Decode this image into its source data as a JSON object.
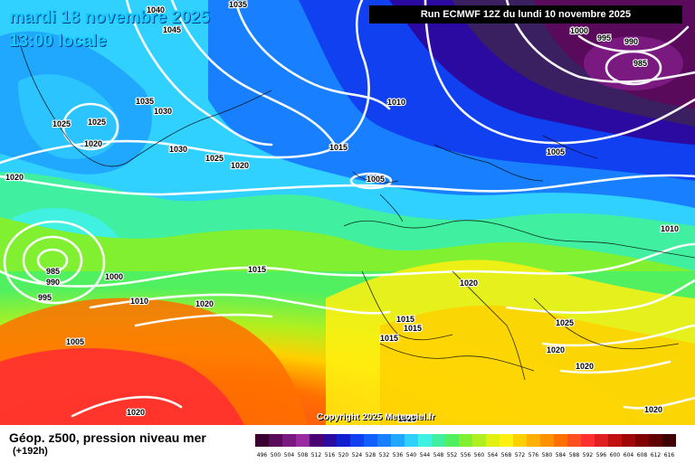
{
  "header": {
    "date": "mardi 18 novembre 2025",
    "time": "13:00 locale",
    "run": "Run ECMWF 12Z du lundi 10 novembre 2025"
  },
  "copyright": "Copyright 2025 Meteociel.fr",
  "footer": {
    "title": "Géop. z500, pression niveau mer",
    "subtitle": "(+192h)"
  },
  "legend": {
    "labels": [
      "496",
      "500",
      "504",
      "508",
      "512",
      "516",
      "520",
      "524",
      "528",
      "532",
      "536",
      "540",
      "544",
      "548",
      "552",
      "556",
      "560",
      "564",
      "568",
      "572",
      "576",
      "580",
      "584",
      "588",
      "592",
      "596",
      "600",
      "604",
      "608",
      "612",
      "616"
    ],
    "colors": [
      "#3a0030",
      "#5a0a5a",
      "#7a1a80",
      "#9a2aa0",
      "#4a0070",
      "#2a0aa0",
      "#1020d0",
      "#1040f0",
      "#1060ff",
      "#1880ff",
      "#20a8ff",
      "#30d0ff",
      "#40f0e0",
      "#40f0a0",
      "#50f060",
      "#80f030",
      "#b0f020",
      "#e0f010",
      "#fff010",
      "#ffd000",
      "#ffb000",
      "#ff9000",
      "#ff7000",
      "#ff5020",
      "#ff3030",
      "#e02020",
      "#c01010",
      "#a00808",
      "#800000",
      "#600000",
      "#400000"
    ]
  },
  "pressure_labels": [
    {
      "text": "1040"
    },
    {
      "text": "1035"
    },
    {
      "text": "1045"
    },
    {
      "text": "1035"
    },
    {
      "text": "1030"
    },
    {
      "text": "1025"
    },
    {
      "text": "1025"
    },
    {
      "text": "1020"
    },
    {
      "text": "1030"
    },
    {
      "text": "1025"
    },
    {
      "text": "1020"
    },
    {
      "text": "1020"
    },
    {
      "text": "1015"
    },
    {
      "text": "1010"
    },
    {
      "text": "1005"
    },
    {
      "text": "1000"
    },
    {
      "text": "995"
    },
    {
      "text": "990"
    },
    {
      "text": "985"
    },
    {
      "text": "1005"
    },
    {
      "text": "1010"
    },
    {
      "text": "985"
    },
    {
      "text": "990"
    },
    {
      "text": "995"
    },
    {
      "text": "1000"
    },
    {
      "text": "1010"
    },
    {
      "text": "1005"
    },
    {
      "text": "1015"
    },
    {
      "text": "1020"
    },
    {
      "text": "1020"
    },
    {
      "text": "1015"
    },
    {
      "text": "1015"
    },
    {
      "text": "1015"
    },
    {
      "text": "1025"
    },
    {
      "text": "1020"
    },
    {
      "text": "1020"
    },
    {
      "text": "1020"
    },
    {
      "text": "1020"
    },
    {
      "text": "1015"
    }
  ]
}
